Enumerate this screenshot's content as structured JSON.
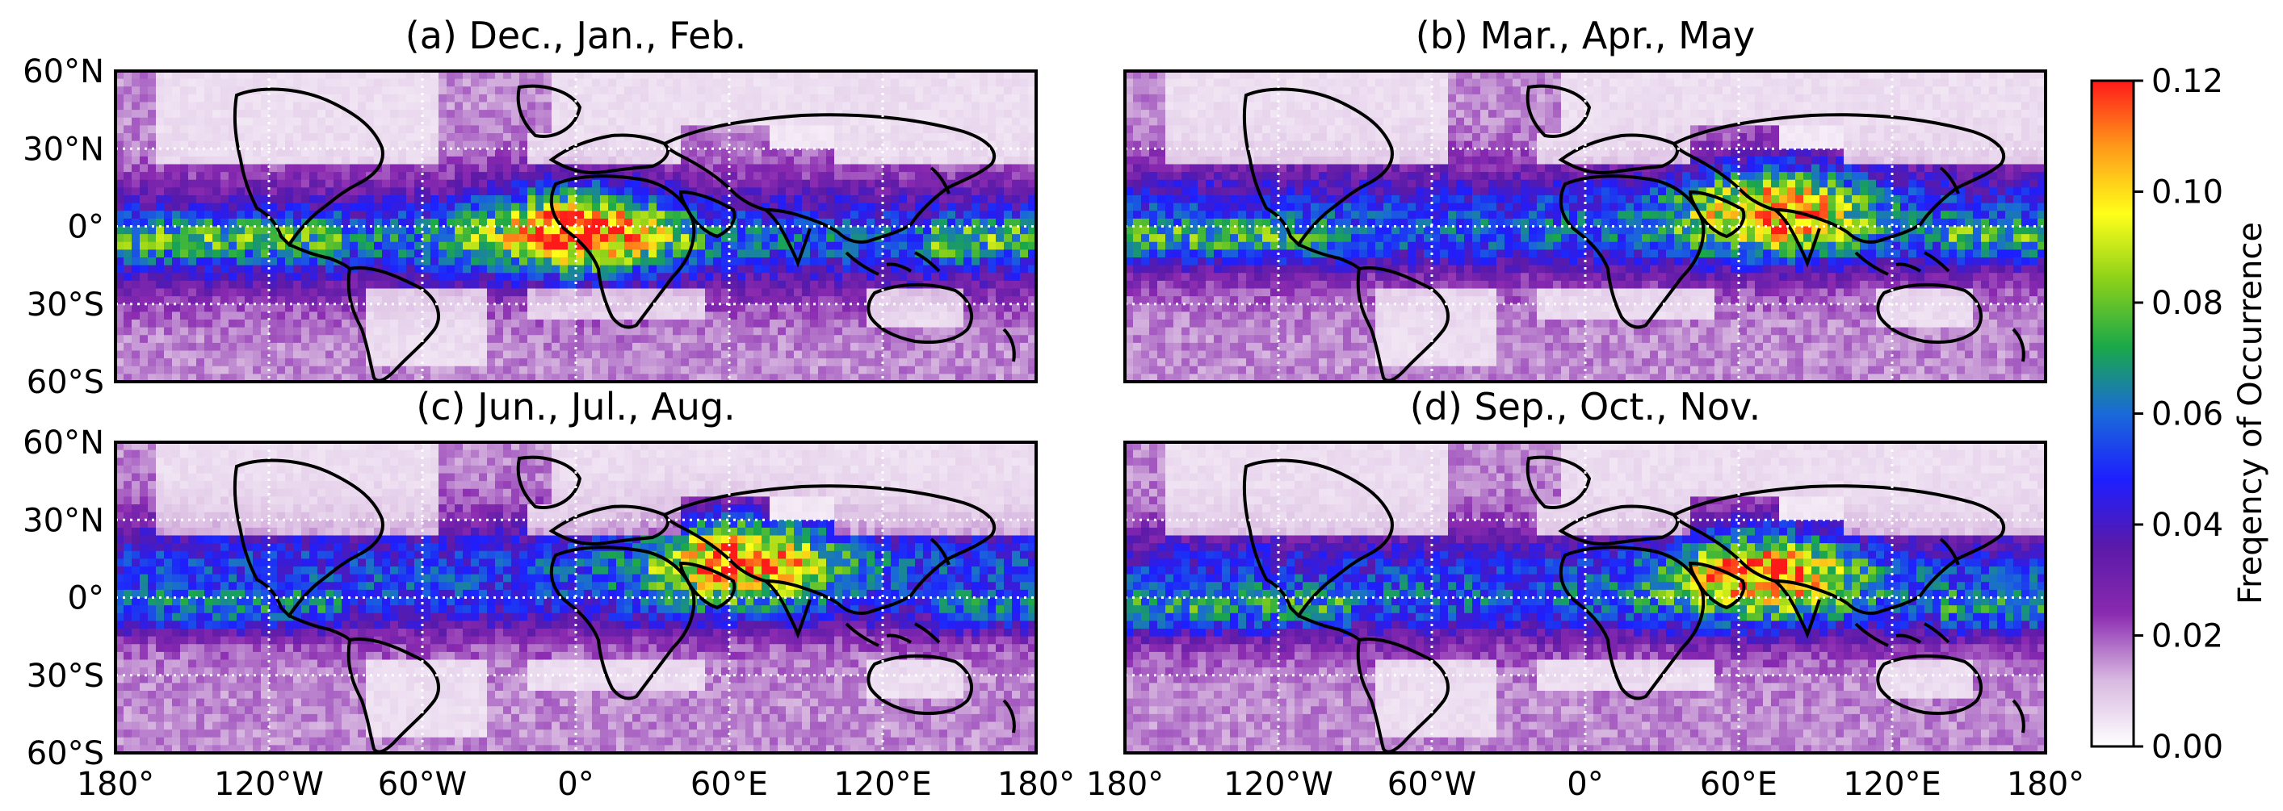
{
  "chart_data": {
    "type": "heatmap",
    "description_units": "Frequency of Occurrence",
    "colorbar": {
      "label": "Freqency of Occurrence",
      "ticks": [
        "0.12",
        "0.10",
        "0.08",
        "0.06",
        "0.04",
        "0.02",
        "0.00"
      ],
      "range": [
        0.0,
        0.12
      ],
      "colors": [
        "#ffffff",
        "#d8b8e0",
        "#8a2ab0",
        "#5a1aa8",
        "#1e1eff",
        "#1a6ad8",
        "#1aa84a",
        "#8ad01a",
        "#ffff1a",
        "#ff9a1a",
        "#ff1a1a"
      ]
    },
    "lat_ticks": [
      "60°N",
      "30°N",
      "0°",
      "30°S",
      "60°S"
    ],
    "lon_ticks": [
      "180°",
      "120°W",
      "60°W",
      "0°",
      "60°E",
      "120°E",
      "180°"
    ],
    "lon_ticks_right": [
      "180°",
      "120°W",
      "60°W",
      "0°",
      "60°E",
      "120°E",
      "180°"
    ],
    "panels": [
      {
        "id": "a",
        "title": "(a) Dec., Jan., Feb.",
        "season": "DJF",
        "peak_lon": 0
      },
      {
        "id": "b",
        "title": "(b) Mar., Apr., May",
        "season": "MAM",
        "peak_lon": 75
      },
      {
        "id": "c",
        "title": "(c) Jun., Jul., Aug.",
        "season": "JJA",
        "peak_lon": 65
      },
      {
        "id": "d",
        "title": "(d) Sep., Oct., Nov.",
        "season": "SON",
        "peak_lon": 70
      }
    ]
  }
}
